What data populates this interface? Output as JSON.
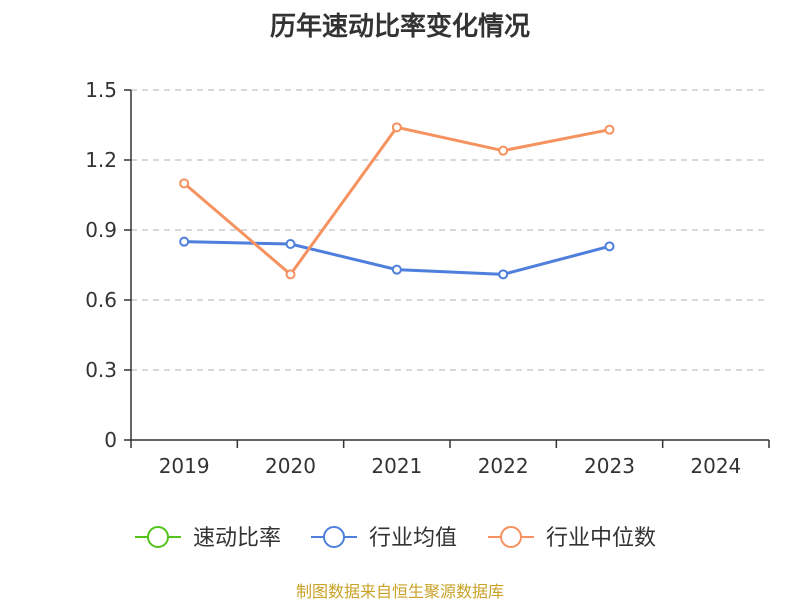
{
  "chart_data": {
    "type": "line",
    "title": "历年速动比率变化情况",
    "categories": [
      "2019",
      "2020",
      "2021",
      "2022",
      "2023",
      "2024"
    ],
    "y_ticks": [
      "0",
      "0.3",
      "0.6",
      "0.9",
      "1.2",
      "1.5"
    ],
    "ylim": [
      0,
      1.5
    ],
    "grid": true,
    "legend_position": "bottom",
    "series": [
      {
        "name": "速动比率",
        "color": "#52c41a",
        "values": [
          null,
          null,
          null,
          null,
          null,
          null
        ]
      },
      {
        "name": "行业均值",
        "color": "#4e7fdc",
        "values": [
          0.85,
          0.84,
          0.73,
          0.71,
          0.83,
          null
        ]
      },
      {
        "name": "行业中位数",
        "color": "#f5925f",
        "values": [
          1.1,
          0.71,
          1.34,
          1.24,
          1.33,
          null
        ]
      }
    ]
  },
  "source": "制图数据来自恒生聚源数据库"
}
